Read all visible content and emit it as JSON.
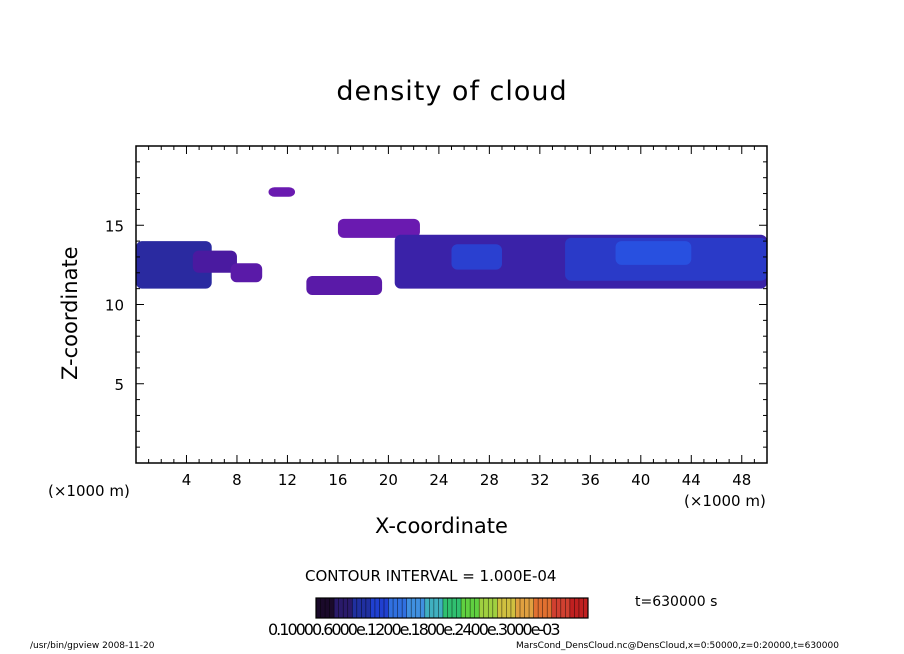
{
  "chart_data": {
    "type": "heatmap",
    "title": "density of cloud",
    "xlabel": "X-coordinate",
    "ylabel": "Z-coordinate",
    "x_unit_left": "(×1000 m)",
    "x_unit_right": "(×1000 m)",
    "xlim": [
      0,
      50
    ],
    "ylim": [
      0,
      20
    ],
    "x_ticks": [
      "4",
      "8",
      "12",
      "16",
      "20",
      "24",
      "28",
      "32",
      "36",
      "40",
      "44",
      "48"
    ],
    "x_tick_values": [
      4,
      8,
      12,
      16,
      20,
      24,
      28,
      32,
      36,
      40,
      44,
      48
    ],
    "y_ticks": [
      "5",
      "10",
      "15"
    ],
    "y_tick_values": [
      5,
      10,
      15
    ],
    "contour_interval": "CONTOUR INTERVAL = 1.000E-04",
    "time_label": "t=630000 s",
    "colorbar_labels": "0.10000.6000e.1200e.1800e.2400e.3000e-03",
    "colorbar_colors": [
      "#1a0a2a",
      "#2a1a6a",
      "#2030a0",
      "#2040d0",
      "#3070e0",
      "#4090e0",
      "#40b0c0",
      "#30c070",
      "#60d040",
      "#a0d040",
      "#d0c040",
      "#e0a040",
      "#e07030",
      "#d04030",
      "#c02020"
    ],
    "cloud_regions": [
      {
        "x": [
          0.0,
          6.0
        ],
        "z": [
          11.0,
          14.0
        ],
        "fill": "#2a2aa0"
      },
      {
        "x": [
          4.5,
          8.0
        ],
        "z": [
          12.0,
          13.4
        ],
        "fill": "#4a1aa0"
      },
      {
        "x": [
          7.5,
          10.0
        ],
        "z": [
          11.4,
          12.6
        ],
        "fill": "#5a1aa8"
      },
      {
        "x": [
          10.5,
          12.6
        ],
        "z": [
          16.8,
          17.4
        ],
        "fill": "#6a1ab0"
      },
      {
        "x": [
          13.5,
          19.5
        ],
        "z": [
          10.6,
          11.8
        ],
        "fill": "#5a1aa8"
      },
      {
        "x": [
          16.0,
          22.5
        ],
        "z": [
          14.2,
          15.4
        ],
        "fill": "#6a1ab0"
      },
      {
        "x": [
          20.5,
          50.0
        ],
        "z": [
          11.0,
          14.4
        ],
        "fill": "#3a22a8"
      },
      {
        "x": [
          25.0,
          29.0
        ],
        "z": [
          12.2,
          13.8
        ],
        "fill": "#2a40d0"
      },
      {
        "x": [
          34.0,
          50.0
        ],
        "z": [
          11.5,
          14.2
        ],
        "fill": "#2a3ac8"
      },
      {
        "x": [
          38.0,
          44.0
        ],
        "z": [
          12.5,
          14.0
        ],
        "fill": "#2850e0"
      }
    ]
  },
  "footer": {
    "left": "/usr/bin/gpview  2008-11-20",
    "right": "MarsCond_DensCloud.nc@DensCloud,x=0:50000,z=0:20000,t=630000"
  }
}
